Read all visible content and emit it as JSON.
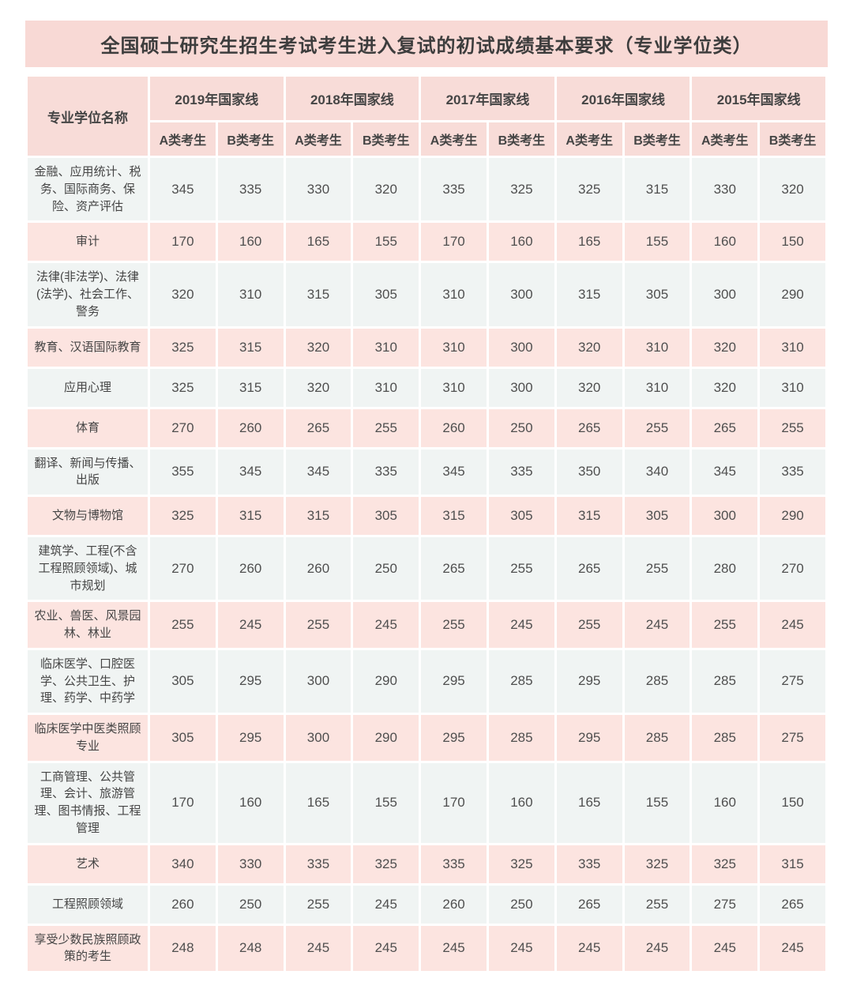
{
  "title": "全国硕士研究生招生考试考生进入复试的初试成绩基本要求（专业学位类）",
  "table": {
    "name_header": "专业学位名称",
    "year_headers": [
      "2019年国家线",
      "2018年国家线",
      "2017年国家线",
      "2016年国家线",
      "2015年国家线"
    ],
    "sub_headers": [
      "A类考生",
      "B类考生"
    ],
    "rows": [
      {
        "name": "金融、应用统计、税务、国际商务、保险、资产评估",
        "values": [
          345,
          335,
          330,
          320,
          335,
          325,
          325,
          315,
          330,
          320
        ]
      },
      {
        "name": "审计",
        "values": [
          170,
          160,
          165,
          155,
          170,
          160,
          165,
          155,
          160,
          150
        ]
      },
      {
        "name": "法律(非法学)、法律(法学)、社会工作、警务",
        "values": [
          320,
          310,
          315,
          305,
          310,
          300,
          315,
          305,
          300,
          290
        ]
      },
      {
        "name": "教育、汉语国际教育",
        "values": [
          325,
          315,
          320,
          310,
          310,
          300,
          320,
          310,
          320,
          310
        ]
      },
      {
        "name": "应用心理",
        "values": [
          325,
          315,
          320,
          310,
          310,
          300,
          320,
          310,
          320,
          310
        ]
      },
      {
        "name": "体育",
        "values": [
          270,
          260,
          265,
          255,
          260,
          250,
          265,
          255,
          265,
          255
        ]
      },
      {
        "name": "翻译、新闻与传播、出版",
        "values": [
          355,
          345,
          345,
          335,
          345,
          335,
          350,
          340,
          345,
          335
        ]
      },
      {
        "name": "文物与博物馆",
        "values": [
          325,
          315,
          315,
          305,
          315,
          305,
          315,
          305,
          300,
          290
        ]
      },
      {
        "name": "建筑学、工程(不含工程照顾领域)、城市规划",
        "values": [
          270,
          260,
          260,
          250,
          265,
          255,
          265,
          255,
          280,
          270
        ]
      },
      {
        "name": "农业、兽医、风景园林、林业",
        "values": [
          255,
          245,
          255,
          245,
          255,
          245,
          255,
          245,
          255,
          245
        ]
      },
      {
        "name": "临床医学、口腔医学、公共卫生、护理、药学、中药学",
        "values": [
          305,
          295,
          300,
          290,
          295,
          285,
          295,
          285,
          285,
          275
        ]
      },
      {
        "name": "临床医学中医类照顾专业",
        "values": [
          305,
          295,
          300,
          290,
          295,
          285,
          295,
          285,
          285,
          275
        ]
      },
      {
        "name": "工商管理、公共管理、会计、旅游管理、图书情报、工程管理",
        "values": [
          170,
          160,
          165,
          155,
          170,
          160,
          165,
          155,
          160,
          150
        ]
      },
      {
        "name": "艺术",
        "values": [
          340,
          330,
          335,
          325,
          335,
          325,
          335,
          325,
          325,
          315
        ]
      },
      {
        "name": "工程照顾领域",
        "values": [
          260,
          250,
          255,
          245,
          260,
          250,
          265,
          255,
          275,
          265
        ]
      },
      {
        "name": "享受少数民族照顾政策的考生",
        "values": [
          248,
          248,
          245,
          245,
          245,
          245,
          245,
          245,
          245,
          245
        ]
      }
    ]
  },
  "colors": {
    "title_bar": "#f8d9d5",
    "header_cell": "#f8dcd8",
    "row_gray": "#f0f4f3",
    "row_pink": "#fce4e0",
    "text": "#4a4a4a"
  }
}
